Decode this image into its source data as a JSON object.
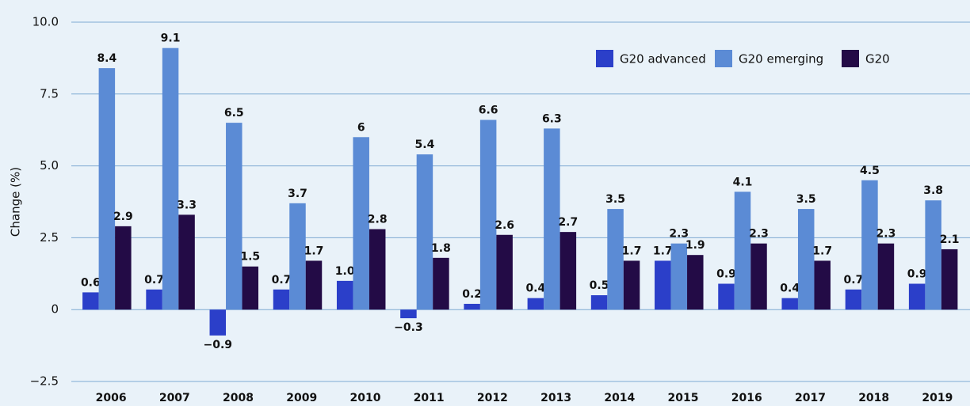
{
  "chart_data": {
    "type": "bar",
    "ylabel": "Change (%)",
    "categories": [
      "2006",
      "2007",
      "2008",
      "2009",
      "2010",
      "2011",
      "2012",
      "2013",
      "2014",
      "2015",
      "2016",
      "2017",
      "2018",
      "2019"
    ],
    "series": [
      {
        "name": "G20 advanced",
        "color": "#2b3fc9",
        "values": [
          0.6,
          0.7,
          -0.9,
          0.7,
          1.0,
          -0.3,
          0.2,
          0.4,
          0.5,
          1.7,
          0.9,
          0.4,
          0.7,
          0.9
        ],
        "value_labels": [
          "0.6",
          "0.7",
          "−0.9",
          "0.7",
          "1.0",
          "−0.3",
          "0.2",
          "0.4",
          "0.5",
          "1.7",
          "0.9",
          "0.4",
          "0.7",
          "0.9"
        ]
      },
      {
        "name": "G20 emerging",
        "color": "#5b8bd5",
        "values": [
          8.4,
          9.1,
          6.5,
          3.7,
          6,
          5.4,
          6.6,
          6.3,
          3.5,
          2.3,
          4.1,
          3.5,
          4.5,
          3.8
        ],
        "value_labels": [
          "8.4",
          "9.1",
          "6.5",
          "3.7",
          "6",
          "5.4",
          "6.6",
          "6.3",
          "3.5",
          "2.3",
          "4.1",
          "3.5",
          "4.5",
          "3.8"
        ]
      },
      {
        "name": "G20",
        "color": "#230b46",
        "values": [
          2.9,
          3.3,
          1.5,
          1.7,
          2.8,
          1.8,
          2.6,
          2.7,
          1.7,
          1.9,
          2.3,
          1.7,
          2.3,
          2.1
        ],
        "value_labels": [
          "2.9",
          "3.3",
          "1.5",
          "1.7",
          "2.8",
          "1.8",
          "2.6",
          "2.7",
          "1.7",
          "1.9",
          "2.3",
          "1.7",
          "2.3",
          "2.1"
        ]
      }
    ],
    "ylim": [
      -2.5,
      10
    ],
    "yticks": [
      {
        "value": -2.5,
        "label": "−2.5"
      },
      0,
      2.5,
      {
        "value": 5,
        "label": "5.0"
      },
      7.5,
      {
        "value": 10,
        "label": "10.0"
      }
    ],
    "grid": true,
    "legend": "upper right"
  }
}
